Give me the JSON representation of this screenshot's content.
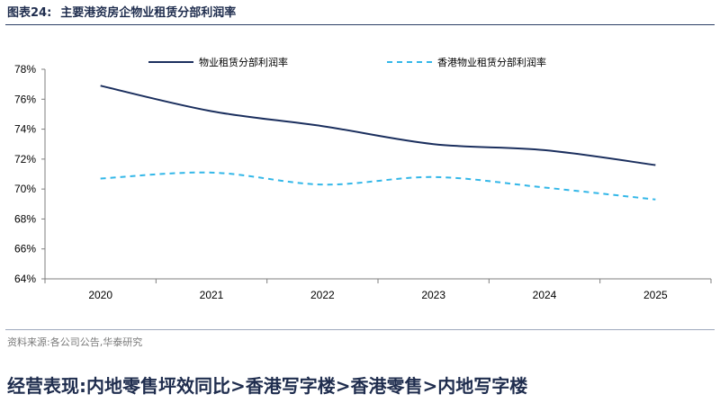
{
  "figure": {
    "label": "图表24:",
    "title": "主要港资房企物业租赁分部利润率"
  },
  "chart_data": {
    "type": "line",
    "title": "",
    "xlabel": "",
    "ylabel": "",
    "x": [
      "2020",
      "2021",
      "2022",
      "2023",
      "2024",
      "2025"
    ],
    "ylim": [
      64,
      78
    ],
    "y_ticks": [
      "64%",
      "66%",
      "68%",
      "70%",
      "72%",
      "74%",
      "76%",
      "78%"
    ],
    "y_unit": "%",
    "grid": false,
    "legend_position": "top",
    "series": [
      {
        "name": "物业租赁分部利润率",
        "values": [
          76.9,
          75.2,
          74.2,
          73.0,
          72.6,
          71.6
        ],
        "color": "#1b2f5e",
        "style": "solid"
      },
      {
        "name": "香港物业租赁分部利润率",
        "values": [
          70.7,
          71.1,
          70.3,
          70.8,
          70.1,
          69.3
        ],
        "color": "#33b7e8",
        "style": "dashed"
      }
    ]
  },
  "source": "资料来源:各公司公告,华泰研究",
  "section_heading": "经营表现:内地零售坪效同比>香港写字楼>香港零售>内地写字楼"
}
